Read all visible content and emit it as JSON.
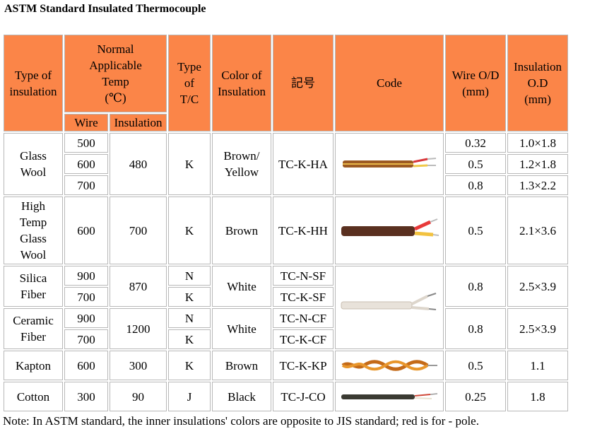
{
  "title": "ASTM Standard Insulated Thermocouple",
  "headers": {
    "type_of_insulation": [
      "Type of",
      "insulation"
    ],
    "normal_temp": [
      "Normal",
      "Applicable",
      "Temp",
      "(℃)"
    ],
    "wire": "Wire",
    "insulation": "Insulation",
    "type_tc": [
      "Type",
      "of",
      "T/C"
    ],
    "color": [
      "Color of",
      "Insulation"
    ],
    "kigo": "記号",
    "code": "Code",
    "wire_od": [
      "Wire O/D",
      "(mm)"
    ],
    "ins_od": [
      "Insulation",
      "O.D",
      "(mm)"
    ]
  },
  "rows": {
    "glass": {
      "name": [
        "Glass",
        "Wool"
      ],
      "wire": [
        "500",
        "600",
        "700"
      ],
      "ins": "480",
      "type": "K",
      "color": [
        "Brown/",
        "Yellow"
      ],
      "code": "TC-K-HA",
      "wod": [
        "0.32",
        "0.5",
        "0.8"
      ],
      "iod": [
        "1.0×1.8",
        "1.2×1.8",
        "1.3×2.2"
      ]
    },
    "hightemp": {
      "name": [
        "High",
        "Temp",
        "Glass",
        "Wool"
      ],
      "wire": "600",
      "ins": "700",
      "type": "K",
      "color": "Brown",
      "code": "TC-K-HH",
      "wod": "0.5",
      "iod": "2.1×3.6"
    },
    "silica": {
      "name": [
        "Silica",
        "Fiber"
      ],
      "wire": [
        "900",
        "700"
      ],
      "ins": "870",
      "type": [
        "N",
        "K"
      ],
      "color": "White",
      "code": [
        "TC-N-SF",
        "TC-K-SF"
      ],
      "wod": "0.8",
      "iod": "2.5×3.9"
    },
    "ceramic": {
      "name": [
        "Ceramic",
        "Fiber"
      ],
      "wire": [
        "900",
        "700"
      ],
      "ins": "1200",
      "type": [
        "N",
        "K"
      ],
      "color": "White",
      "code": [
        "TC-N-CF",
        "TC-K-CF"
      ],
      "wod": "0.8",
      "iod": "2.5×3.9"
    },
    "kapton": {
      "name": "Kapton",
      "wire": "600",
      "ins": "300",
      "type": "K",
      "color": "Brown",
      "code": "TC-K-KP",
      "wod": "0.5",
      "iod": "1.1"
    },
    "cotton": {
      "name": "Cotton",
      "wire": "300",
      "ins": "90",
      "type": "J",
      "color": "Black",
      "code": "TC-J-CO",
      "wod": "0.25",
      "iod": "1.8"
    }
  },
  "note": "Note: In ASTM standard, the inner insulations' colors are opposite to JIS standard; red is for - pole.",
  "colors": {
    "header_bg": "#fb8548"
  }
}
